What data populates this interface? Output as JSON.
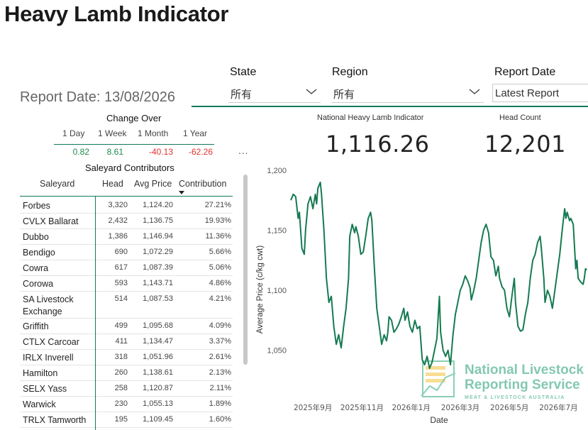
{
  "title": "Heavy Lamb Indicator",
  "report_date_label": "Report Date: 13/08/2026",
  "filters": {
    "state": {
      "label": "State",
      "value": "所有"
    },
    "region": {
      "label": "Region",
      "value": "所有"
    },
    "report_date": {
      "label": "Report Date",
      "value": "Latest Report"
    }
  },
  "change_over": {
    "title": "Change Over",
    "columns": [
      "1 Day",
      "1 Week",
      "1 Month",
      "1 Year"
    ],
    "values": [
      "0.82",
      "8.61",
      "-40.13",
      "-62.26"
    ],
    "more": "..."
  },
  "saleyard": {
    "title": "Saleyard Contributors",
    "headers": [
      "Saleyard",
      "Head",
      "Avg Price",
      "Contribution"
    ],
    "rows": [
      [
        "Forbes",
        "3,320",
        "1,124.20",
        "27.21%"
      ],
      [
        "CVLX Ballarat",
        "2,432",
        "1,136.75",
        "19.93%"
      ],
      [
        "Dubbo",
        "1,386",
        "1,146.94",
        "11.36%"
      ],
      [
        "Bendigo",
        "690",
        "1,072.29",
        "5.66%"
      ],
      [
        "Cowra",
        "617",
        "1,087.39",
        "5.06%"
      ],
      [
        "Corowa",
        "593",
        "1,143.71",
        "4.86%"
      ],
      [
        "SA Livestock Exchange",
        "514",
        "1,087.53",
        "4.21%"
      ],
      [
        "Griffith",
        "499",
        "1,095.68",
        "4.09%"
      ],
      [
        "CTLX Carcoar",
        "411",
        "1,134.47",
        "3.37%"
      ],
      [
        "IRLX Inverell",
        "318",
        "1,051.96",
        "2.61%"
      ],
      [
        "Hamilton",
        "260",
        "1,138.61",
        "2.13%"
      ],
      [
        "SELX Yass",
        "258",
        "1,120.87",
        "2.11%"
      ],
      [
        "Warwick",
        "230",
        "1,055.13",
        "1.89%"
      ],
      [
        "TRLX Tamworth",
        "195",
        "1,109.45",
        "1.60%"
      ]
    ]
  },
  "kpis": {
    "indicator_label": "National Heavy Lamb Indicator",
    "indicator_value": "1,116.26",
    "head_label": "Head Count",
    "head_value": "12,201"
  },
  "watermark": {
    "line1": "National Livestock",
    "line2": "Reporting Service",
    "line3": "MEAT & LIVESTOCK AUSTRALIA"
  },
  "chart_data": {
    "type": "line",
    "title": "",
    "xlabel": "Date",
    "ylabel": "Average Price (c/kg cwt)",
    "ylim": [
      1025,
      1200
    ],
    "yticks": [
      1050,
      1100,
      1150,
      1200
    ],
    "ytick_labels": [
      "1,050",
      "1,100",
      "1,150",
      "1,200"
    ],
    "xticks": [
      {
        "label": "2025年9月",
        "x": 0.9
      },
      {
        "label": "2025年11月",
        "x": 2.9
      },
      {
        "label": "2026年1月",
        "x": 4.9
      },
      {
        "label": "2026年3月",
        "x": 6.9
      },
      {
        "label": "2026年5月",
        "x": 8.9
      },
      {
        "label": "2026年7月",
        "x": 10.9
      }
    ],
    "xlim": [
      0,
      12.1
    ],
    "line_color": "#157a50",
    "points": [
      [
        0.0,
        1175
      ],
      [
        0.1,
        1180
      ],
      [
        0.2,
        1178
      ],
      [
        0.3,
        1160
      ],
      [
        0.35,
        1165
      ],
      [
        0.45,
        1135
      ],
      [
        0.55,
        1130
      ],
      [
        0.6,
        1150
      ],
      [
        0.7,
        1172
      ],
      [
        0.8,
        1178
      ],
      [
        0.9,
        1168
      ],
      [
        1.0,
        1180
      ],
      [
        1.05,
        1172
      ],
      [
        1.1,
        1185
      ],
      [
        1.2,
        1190
      ],
      [
        1.25,
        1180
      ],
      [
        1.35,
        1150
      ],
      [
        1.45,
        1110
      ],
      [
        1.55,
        1090
      ],
      [
        1.65,
        1095
      ],
      [
        1.75,
        1070
      ],
      [
        1.85,
        1055
      ],
      [
        1.95,
        1063
      ],
      [
        2.05,
        1052
      ],
      [
        2.15,
        1070
      ],
      [
        2.25,
        1085
      ],
      [
        2.35,
        1110
      ],
      [
        2.4,
        1145
      ],
      [
        2.5,
        1155
      ],
      [
        2.6,
        1148
      ],
      [
        2.65,
        1153
      ],
      [
        2.75,
        1145
      ],
      [
        2.85,
        1130
      ],
      [
        2.95,
        1132
      ],
      [
        3.05,
        1145
      ],
      [
        3.15,
        1160
      ],
      [
        3.25,
        1165
      ],
      [
        3.3,
        1158
      ],
      [
        3.4,
        1120
      ],
      [
        3.5,
        1085
      ],
      [
        3.6,
        1070
      ],
      [
        3.7,
        1055
      ],
      [
        3.8,
        1063
      ],
      [
        3.9,
        1058
      ],
      [
        3.95,
        1065
      ],
      [
        4.0,
        1078
      ],
      [
        4.1,
        1075
      ],
      [
        4.2,
        1065
      ],
      [
        4.3,
        1068
      ],
      [
        4.4,
        1072
      ],
      [
        4.5,
        1078
      ],
      [
        4.6,
        1085
      ],
      [
        4.65,
        1075
      ],
      [
        4.75,
        1082
      ],
      [
        4.85,
        1070
      ],
      [
        4.95,
        1065
      ],
      [
        5.05,
        1075
      ],
      [
        5.15,
        1068
      ],
      [
        5.25,
        1070
      ],
      [
        5.35,
        1042
      ],
      [
        5.45,
        1038
      ],
      [
        5.55,
        1045
      ],
      [
        5.65,
        1035
      ],
      [
        5.75,
        1040
      ],
      [
        5.85,
        1050
      ],
      [
        5.95,
        1060
      ],
      [
        6.05,
        1095
      ],
      [
        6.1,
        1065
      ],
      [
        6.2,
        1050
      ],
      [
        6.3,
        1045
      ],
      [
        6.4,
        1050
      ],
      [
        6.5,
        1038
      ],
      [
        6.6,
        1062
      ],
      [
        6.7,
        1080
      ],
      [
        6.8,
        1090
      ],
      [
        6.9,
        1100
      ],
      [
        7.0,
        1105
      ],
      [
        7.1,
        1112
      ],
      [
        7.2,
        1108
      ],
      [
        7.3,
        1102
      ],
      [
        7.35,
        1092
      ],
      [
        7.45,
        1100
      ],
      [
        7.55,
        1110
      ],
      [
        7.65,
        1125
      ],
      [
        7.75,
        1140
      ],
      [
        7.85,
        1150
      ],
      [
        7.95,
        1155
      ],
      [
        8.05,
        1148
      ],
      [
        8.15,
        1128
      ],
      [
        8.25,
        1125
      ],
      [
        8.35,
        1112
      ],
      [
        8.45,
        1120
      ],
      [
        8.5,
        1110
      ],
      [
        8.6,
        1103
      ],
      [
        8.7,
        1100
      ],
      [
        8.8,
        1085
      ],
      [
        8.9,
        1078
      ],
      [
        9.0,
        1095
      ],
      [
        9.1,
        1110
      ],
      [
        9.15,
        1090
      ],
      [
        9.25,
        1070
      ],
      [
        9.35,
        1066
      ],
      [
        9.45,
        1067
      ],
      [
        9.55,
        1080
      ],
      [
        9.65,
        1090
      ],
      [
        9.75,
        1110
      ],
      [
        9.85,
        1125
      ],
      [
        9.95,
        1130
      ],
      [
        10.05,
        1140
      ],
      [
        10.15,
        1145
      ],
      [
        10.2,
        1135
      ],
      [
        10.3,
        1110
      ],
      [
        10.35,
        1090
      ],
      [
        10.45,
        1100
      ],
      [
        10.55,
        1095
      ],
      [
        10.65,
        1085
      ],
      [
        10.75,
        1100
      ],
      [
        10.85,
        1115
      ],
      [
        10.95,
        1130
      ],
      [
        11.05,
        1150
      ],
      [
        11.15,
        1168
      ],
      [
        11.2,
        1160
      ],
      [
        11.25,
        1165
      ],
      [
        11.35,
        1158
      ],
      [
        11.4,
        1160
      ],
      [
        11.5,
        1155
      ],
      [
        11.6,
        1118
      ],
      [
        11.65,
        1125
      ],
      [
        11.7,
        1110
      ],
      [
        11.8,
        1107
      ],
      [
        11.9,
        1105
      ],
      [
        11.95,
        1110
      ],
      [
        12.0,
        1118
      ],
      [
        12.05,
        1117
      ]
    ]
  }
}
